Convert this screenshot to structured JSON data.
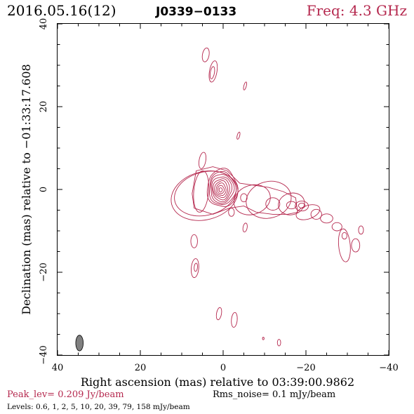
{
  "header": {
    "date": "2016.05.16(12)",
    "source": "J0339−0133",
    "freq": "Freq: 4.3 GHz"
  },
  "footer": {
    "peak": "Peak_lev=  0.209 Jy/beam",
    "rms": "Rms_noise=  0.1 mJy/beam",
    "levels": "Levels: 0.6,   1,   2,   5,  10,  20,  39,  79, 158 mJy/beam"
  },
  "colors": {
    "contour": "#b5284e",
    "accent_text": "#b5284e",
    "beam_fill": "#808080",
    "axis": "#000000"
  },
  "chart_data": {
    "type": "contour",
    "title": "2016.05.16(12) J0339−0133",
    "xlabel": "Right ascension (mas) relative to 03:39:00.9862",
    "ylabel": "Declination (mas) relative to −01:33:17.608",
    "xlim": [
      40,
      -40
    ],
    "ylim": [
      -40,
      40
    ],
    "x_ticks": [
      40,
      20,
      0,
      -20,
      -40
    ],
    "y_ticks": [
      -40,
      -20,
      0,
      20,
      40
    ],
    "x_tick_labels": [
      "40",
      "20",
      "0",
      "−20",
      "−40"
    ],
    "y_tick_labels": [
      "−40",
      "−20",
      "0",
      "20",
      "40"
    ],
    "levels_mJy": [
      0.6,
      1,
      2,
      5,
      10,
      20,
      39,
      79,
      158
    ],
    "peak_Jy_per_beam": 0.209,
    "rms_mJy_per_beam": 0.1,
    "beam": {
      "x": 34.7,
      "y": -37.1,
      "major": 3.8,
      "minor": 1.8,
      "pa_deg": 0
    },
    "core": {
      "x": 0.2,
      "y": 0.3,
      "semi_major": [
        4.6,
        4.0,
        3.5,
        3.0,
        2.5,
        2.0,
        1.5,
        1.0,
        0.5
      ],
      "axis_ratio": 1.25
    },
    "contours": [
      {
        "x": 4.3,
        "y": -1.0,
        "a": 7.6,
        "b": 5.2,
        "angle": -15
      },
      {
        "x": 4.5,
        "y": -1.5,
        "a": 8.2,
        "b": 5.8,
        "angle": -15
      },
      {
        "x": -7.0,
        "y": -2.5,
        "a": 4.5,
        "b": 3.5,
        "angle": -20
      },
      {
        "x": -11.0,
        "y": -2.5,
        "a": 5.5,
        "b": 4.4,
        "angle": -15
      },
      {
        "x": -12.0,
        "y": -3.5,
        "a": 1.7,
        "b": 1.5,
        "angle": 0
      },
      {
        "x": -16.5,
        "y": -3.5,
        "a": 3.2,
        "b": 2.6,
        "angle": -15
      },
      {
        "x": -16.5,
        "y": -3.8,
        "a": 1.2,
        "b": 0.9,
        "angle": 0
      },
      {
        "x": -19.0,
        "y": -4.0,
        "a": 1.6,
        "b": 1.2,
        "angle": 0
      },
      {
        "x": -19.0,
        "y": -3.9,
        "a": 0.8,
        "b": 0.6,
        "angle": 0
      },
      {
        "x": -20.5,
        "y": -5.5,
        "a": 3.0,
        "b": 1.6,
        "angle": -20
      },
      {
        "x": -22.5,
        "y": -6.0,
        "a": 1.3,
        "b": 1.2,
        "angle": 0
      },
      {
        "x": -25.0,
        "y": -7.0,
        "a": 1.5,
        "b": 1.1,
        "angle": 0
      },
      {
        "x": -27.5,
        "y": -9.0,
        "a": 1.2,
        "b": 1.0,
        "angle": 0
      },
      {
        "x": -29.3,
        "y": -13.5,
        "a": 1.4,
        "b": 4.0,
        "angle": -5
      },
      {
        "x": -29.3,
        "y": -11.2,
        "a": 0.6,
        "b": 0.8,
        "angle": 0
      },
      {
        "x": -32.0,
        "y": -13.5,
        "a": 1.0,
        "b": 1.6,
        "angle": 0
      },
      {
        "x": -33.3,
        "y": -9.8,
        "a": 0.6,
        "b": 1.0,
        "angle": 0
      },
      {
        "x": 5.3,
        "y": -0.5,
        "a": 1.8,
        "b": 5.0,
        "angle": 5
      },
      {
        "x": 5.0,
        "y": 7.0,
        "a": 0.8,
        "b": 2.0,
        "angle": 10
      },
      {
        "x": 4.2,
        "y": 32.5,
        "a": 0.8,
        "b": 1.7,
        "angle": 10
      },
      {
        "x": 2.4,
        "y": 28.5,
        "a": 0.9,
        "b": 2.6,
        "angle": 10
      },
      {
        "x": 2.6,
        "y": 28.2,
        "a": 0.5,
        "b": 1.5,
        "angle": 10
      },
      {
        "x": -5.3,
        "y": 25.0,
        "a": 0.3,
        "b": 1.0,
        "angle": 15
      },
      {
        "x": -3.7,
        "y": 13.0,
        "a": 0.3,
        "b": 0.9,
        "angle": 15
      },
      {
        "x": -5.3,
        "y": -9.2,
        "a": 0.5,
        "b": 1.1,
        "angle": 10
      },
      {
        "x": -5.0,
        "y": -2.0,
        "a": 0.8,
        "b": 1.0,
        "angle": 0
      },
      {
        "x": -2.0,
        "y": -5.5,
        "a": 0.7,
        "b": 1.0,
        "angle": 0
      },
      {
        "x": 7.0,
        "y": -12.5,
        "a": 0.8,
        "b": 1.6,
        "angle": 0
      },
      {
        "x": 6.8,
        "y": -19.0,
        "a": 0.9,
        "b": 2.3,
        "angle": 5
      },
      {
        "x": 6.6,
        "y": -18.8,
        "a": 0.4,
        "b": 1.0,
        "angle": 5
      },
      {
        "x": 1.0,
        "y": -30.0,
        "a": 0.6,
        "b": 1.5,
        "angle": 10
      },
      {
        "x": -2.7,
        "y": -31.5,
        "a": 0.7,
        "b": 1.8,
        "angle": 5
      },
      {
        "x": -13.5,
        "y": -37.0,
        "a": 0.4,
        "b": 0.8,
        "angle": 0
      },
      {
        "x": -9.7,
        "y": -36.0,
        "a": 0.2,
        "b": 0.3,
        "angle": 0
      }
    ]
  }
}
